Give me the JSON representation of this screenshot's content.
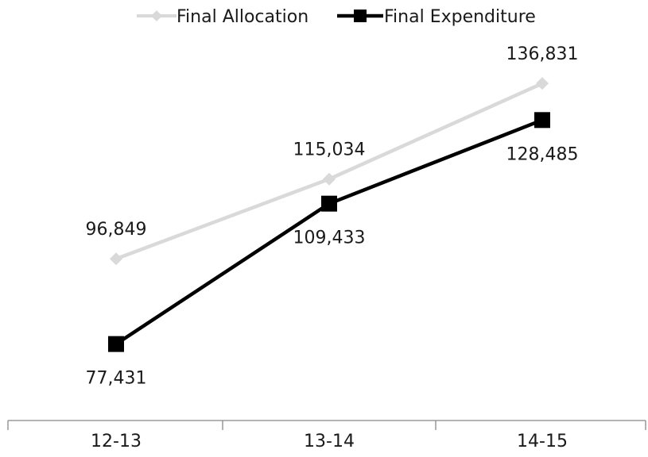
{
  "chart_data": {
    "type": "line",
    "categories": [
      "12-13",
      "13-14",
      "14-15"
    ],
    "series": [
      {
        "name": "Final Allocation",
        "values": [
          96849,
          115034,
          136831
        ],
        "labels": [
          "96,849",
          "115,034",
          "136,831"
        ],
        "color": "#d9d9d9",
        "marker": "diamond"
      },
      {
        "name": "Final Expenditure",
        "values": [
          77431,
          109433,
          128485
        ],
        "labels": [
          "77,431",
          "109,433",
          "128,485"
        ],
        "color": "#000000",
        "marker": "square"
      }
    ],
    "title": "",
    "xlabel": "",
    "ylabel": "",
    "ylim": [
      60000,
      145000
    ],
    "grid": false,
    "legend": "top"
  }
}
